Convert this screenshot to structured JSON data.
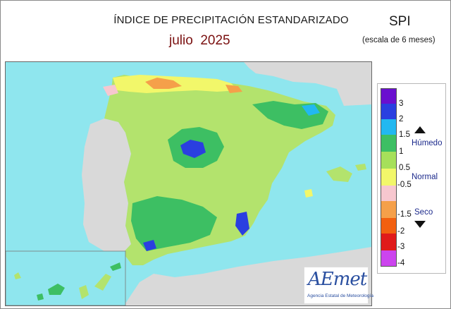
{
  "header": {
    "title": "ÍNDICE DE PRECIPITACIÓN ESTANDARIZADO",
    "month": "julio  2025",
    "index_name": "SPI",
    "scale_note": "(escala de 6 meses)"
  },
  "legend": {
    "ticks": [
      "3",
      "2",
      "1.5",
      "1",
      "0.5",
      "-0.5",
      "-1.5",
      "-2",
      "-3",
      "-4"
    ],
    "categories": {
      "wet": "Húmedo",
      "normal": "Normal",
      "dry": "Seco"
    },
    "colors": [
      "#6a0fcf",
      "#2a3fe0",
      "#22b8f0",
      "#3dbf63",
      "#a6e05a",
      "#f2f76a",
      "#f7c7cf",
      "#f5a04a",
      "#f26010",
      "#e01a1a",
      "#cc44ee"
    ]
  },
  "map": {
    "sea_color": "#8fe6ee",
    "land_outside_color": "#d9d9d9"
  },
  "logo": {
    "wordmark": "AEmet",
    "subtitle": "Agencia Estatal de Meteorología"
  }
}
